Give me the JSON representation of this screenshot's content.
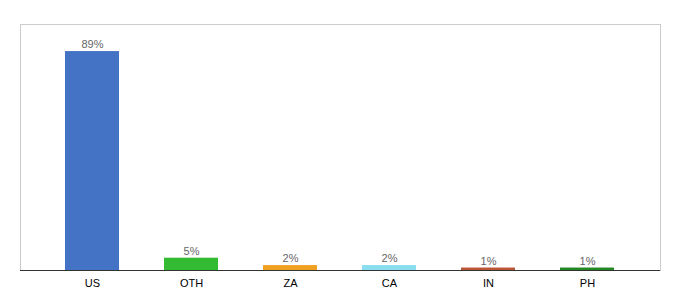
{
  "chart_data": {
    "type": "bar",
    "categories": [
      "US",
      "OTH",
      "ZA",
      "CA",
      "IN",
      "PH"
    ],
    "values": [
      89,
      5,
      2,
      2,
      1,
      1
    ],
    "value_labels": [
      "89%",
      "5%",
      "2%",
      "2%",
      "1%",
      "1%"
    ],
    "colors": [
      "#4472c4",
      "#33bb33",
      "#f0a020",
      "#88ddee",
      "#bb5533",
      "#228822"
    ],
    "ylim": [
      0,
      100
    ],
    "data_labels": true,
    "tick_labels": "x"
  }
}
